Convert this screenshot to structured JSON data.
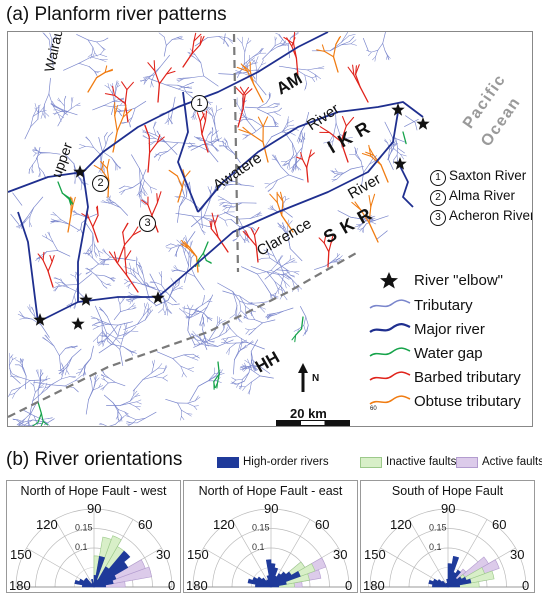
{
  "panel_a": {
    "title": "(a) Planform river patterns",
    "labels": {
      "wairau": "Wairau",
      "upper": "upper",
      "awatere": "Awatere",
      "river1": "River",
      "river2": "River",
      "clarence": "Clarence",
      "am": "AM",
      "ikr": "I K R",
      "skr": "S K R",
      "hh": "HH",
      "pacific": "Pacific",
      "ocean": "Ocean",
      "num1": "1",
      "num2": "2",
      "num3": "3",
      "north": "N",
      "scale": "20 km",
      "small_label": "60"
    },
    "rivers": [
      {
        "num": "1",
        "name": "Saxton River"
      },
      {
        "num": "2",
        "name": "Alma River"
      },
      {
        "num": "3",
        "name": "Acheron River"
      }
    ],
    "legend": [
      {
        "key": "elbow",
        "label": "River \"elbow\""
      },
      {
        "key": "tributary",
        "label": "Tributary"
      },
      {
        "key": "major",
        "label": "Major river"
      },
      {
        "key": "gap",
        "label": "Water gap"
      },
      {
        "key": "barbed",
        "label": "Barbed tributary"
      },
      {
        "key": "obtuse",
        "label": "Obtuse tributary"
      }
    ],
    "colors": {
      "tributary": "#7a86cc",
      "major": "#1f2f8f",
      "gap": "#16a34a",
      "barbed": "#e0231b",
      "obtuse": "#f07c12",
      "fault": "#7a7a7a",
      "ocean_text": "#9a9a9a"
    }
  },
  "panel_b": {
    "title": "(b) River orientations",
    "legend": [
      {
        "key": "high_order",
        "label": "High-order rivers",
        "color": "#1f3a9a"
      },
      {
        "key": "inactive",
        "label": "Inactive faults",
        "color": "#d8efc8"
      },
      {
        "key": "active",
        "label": "Active faults",
        "color": "#dccbea"
      }
    ],
    "panels": [
      {
        "title": "North of Hope Fault - west",
        "angle_labels": [
          "90",
          "120",
          "60",
          "150",
          "30",
          "180",
          "0"
        ],
        "radial_labels": [
          "0.15",
          "0.1"
        ],
        "rivers": [
          0.03,
          0.05,
          0.06,
          0.1,
          0.12,
          0.06,
          0.02,
          0.08,
          0.03,
          0.01,
          0.02,
          0.01,
          0.01,
          0.03,
          0.03,
          0.04,
          0.05,
          0.03
        ],
        "inactive": [
          0,
          0,
          0,
          0,
          0.06,
          0.12,
          0.14,
          0.13,
          0.08,
          0,
          0,
          0,
          0,
          0,
          0,
          0,
          0,
          0
        ],
        "active": [
          0.08,
          0.15,
          0.14,
          0.07,
          0,
          0,
          0,
          0,
          0,
          0,
          0,
          0,
          0,
          0,
          0,
          0,
          0,
          0
        ]
      },
      {
        "title": "North of Hope Fault - east",
        "angle_labels": [
          "90",
          "120",
          "60",
          "150",
          "30",
          "180",
          "0"
        ],
        "radial_labels": [
          "0.15",
          "0.1"
        ],
        "rivers": [
          0.02,
          0.04,
          0.08,
          0.06,
          0.05,
          0.04,
          0.03,
          0.05,
          0.06,
          0.07,
          0.03,
          0.02,
          0.02,
          0.03,
          0.04,
          0.05,
          0.06,
          0.04
        ],
        "inactive": [
          0.06,
          0.1,
          0.12,
          0.1,
          0.05,
          0,
          0,
          0,
          0,
          0,
          0,
          0,
          0,
          0,
          0,
          0,
          0,
          0
        ],
        "active": [
          0.08,
          0.13,
          0.15,
          0.1,
          0.04,
          0,
          0,
          0,
          0,
          0,
          0,
          0,
          0,
          0,
          0,
          0,
          0,
          0
        ]
      },
      {
        "title": "South of Hope Fault",
        "angle_labels": [
          "90",
          "120",
          "60",
          "150",
          "30",
          "180",
          "0"
        ],
        "radial_labels": [
          "0.15",
          "0.1"
        ],
        "rivers": [
          0.03,
          0.06,
          0.05,
          0.04,
          0.03,
          0.05,
          0.04,
          0.08,
          0.06,
          0.02,
          0.01,
          0.01,
          0.01,
          0.02,
          0.03,
          0.04,
          0.05,
          0.04
        ],
        "inactive": [
          0.08,
          0.12,
          0.1,
          0.05,
          0,
          0,
          0,
          0,
          0,
          0,
          0,
          0,
          0,
          0,
          0,
          0,
          0,
          0
        ],
        "active": [
          0.05,
          0.1,
          0.14,
          0.12,
          0.06,
          0,
          0,
          0,
          0,
          0,
          0,
          0,
          0,
          0,
          0,
          0,
          0,
          0
        ]
      }
    ]
  }
}
